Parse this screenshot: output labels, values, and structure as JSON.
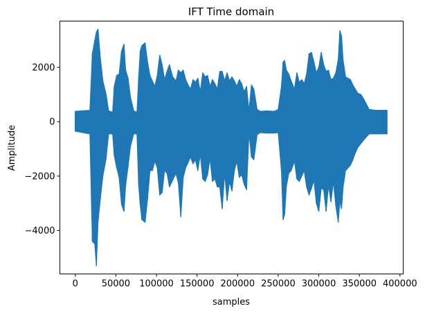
{
  "chart_data": {
    "type": "line",
    "title": "IFT Time domain",
    "xlabel": "samples",
    "ylabel": "Amplitude",
    "xlim": [
      -19000,
      404000
    ],
    "ylim": [
      -5600,
      3700
    ],
    "xticks": [
      0,
      50000,
      100000,
      150000,
      200000,
      250000,
      300000,
      350000,
      400000
    ],
    "xtick_labels": [
      "0",
      "50000",
      "100000",
      "150000",
      "200000",
      "250000",
      "300000",
      "350000",
      "400000"
    ],
    "yticks": [
      2000,
      0,
      -2000,
      -4000
    ],
    "ytick_labels": [
      "2000",
      "0",
      "−2000",
      "−4000"
    ],
    "grid": false,
    "legend": "none",
    "color": "#1f77b4",
    "series": [
      {
        "x": [
          0,
          18000,
          21000,
          24000,
          26000,
          28000,
          31000,
          34000,
          38000,
          41000,
          46000,
          48000,
          51000,
          54000,
          57000,
          60000,
          62000,
          65000,
          68000,
          72000,
          76000,
          78000,
          80000,
          82000,
          86000,
          89000,
          92000,
          95000,
          98000,
          101000,
          104000,
          107000,
          110000,
          113000,
          116000,
          120000,
          124000,
          127000,
          130000,
          133000,
          136000,
          139000,
          142000,
          145000,
          148000,
          151000,
          154000,
          157000,
          160000,
          163000,
          166000,
          169000,
          172000,
          175000,
          178000,
          181000,
          184000,
          187000,
          190000,
          193000,
          196000,
          199000,
          202000,
          205000,
          208000,
          211000,
          214000,
          217000,
          220000,
          224000,
          228000,
          236000,
          245000,
          250000,
          254000,
          256000,
          258000,
          260000,
          263000,
          266000,
          270000,
          273000,
          276000,
          279000,
          282000,
          285000,
          288000,
          291000,
          294000,
          297000,
          300000,
          303000,
          306000,
          309000,
          312000,
          315000,
          318000,
          321000,
          324000,
          326000,
          328000,
          330000,
          333000,
          336000,
          339000,
          342000,
          345000,
          348000,
          352000,
          356000,
          362000,
          370000,
          378000,
          384000
        ],
        "max": [
          380,
          420,
          2500,
          3000,
          3300,
          3400,
          2300,
          1500,
          1000,
          400,
          350,
          1300,
          1700,
          1750,
          2600,
          2850,
          1900,
          1600,
          900,
          400,
          350,
          1600,
          2600,
          2800,
          2900,
          2200,
          1700,
          1500,
          1300,
          1700,
          2450,
          2100,
          1550,
          1850,
          2100,
          1650,
          1500,
          1900,
          1800,
          1900,
          1550,
          1350,
          1200,
          1550,
          1450,
          1600,
          1100,
          1800,
          1650,
          1700,
          1300,
          1550,
          1400,
          1200,
          1850,
          1850,
          1500,
          1800,
          1500,
          1650,
          1500,
          1300,
          1550,
          1400,
          1100,
          1300,
          400,
          1350,
          1200,
          450,
          380,
          400,
          380,
          450,
          1300,
          2200,
          2250,
          1900,
          1750,
          1500,
          1200,
          1800,
          1450,
          1550,
          1400,
          1750,
          2500,
          2550,
          2200,
          1800,
          2000,
          2550,
          2100,
          1850,
          1900,
          1550,
          1600,
          1800,
          2300,
          3350,
          3150,
          2250,
          1650,
          1600,
          1550,
          1350,
          1200,
          1050,
          1000,
          800,
          450,
          420,
          420,
          420
        ],
        "min": [
          -350,
          -450,
          -4400,
          -4500,
          -5300,
          -3700,
          -2800,
          -2000,
          -1350,
          -450,
          -450,
          -1250,
          -1700,
          -2050,
          -3050,
          -3300,
          -2350,
          -1650,
          -900,
          -450,
          -450,
          -2300,
          -3050,
          -3600,
          -3700,
          -2850,
          -1800,
          -1800,
          -1450,
          -1700,
          -2700,
          -2600,
          -1800,
          -1900,
          -2400,
          -2150,
          -1900,
          -2250,
          -3500,
          -2050,
          -1700,
          -1500,
          -1300,
          -1550,
          -1400,
          -1800,
          -1200,
          -2100,
          -2200,
          -1950,
          -1350,
          -2200,
          -2100,
          -2400,
          -2400,
          -3200,
          -1900,
          -2900,
          -2200,
          -2550,
          -1800,
          -1450,
          -2050,
          -1950,
          -2300,
          -2500,
          -400,
          -1300,
          -1400,
          -480,
          -400,
          -420,
          -420,
          -400,
          -1800,
          -3600,
          -3400,
          -2400,
          -1900,
          -1800,
          -1450,
          -2100,
          -2200,
          -2000,
          -1800,
          -2400,
          -2700,
          -2450,
          -2150,
          -3000,
          -3300,
          -2450,
          -2500,
          -3300,
          -2350,
          -2950,
          -2200,
          -3100,
          -3700,
          -2900,
          -3200,
          -2400,
          -1800,
          -1700,
          -1600,
          -1400,
          -1150,
          -950,
          -800,
          -650,
          -450,
          -450,
          -450,
          -450
        ]
      }
    ]
  }
}
